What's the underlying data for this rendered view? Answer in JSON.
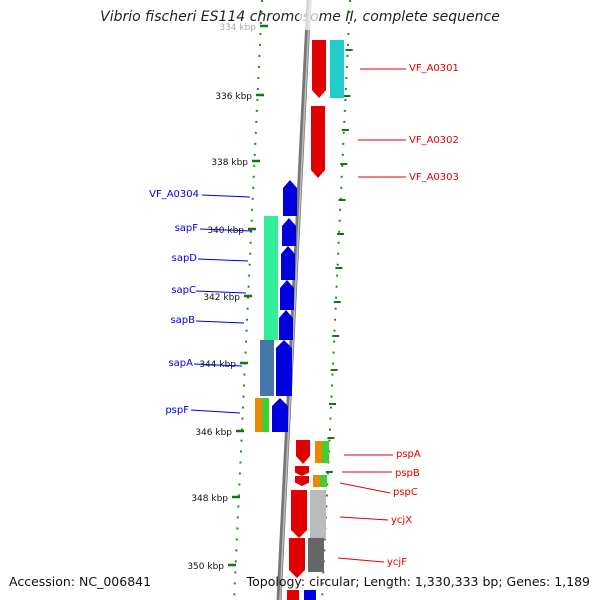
{
  "title": "Vibrio fischeri ES114 chromosome II, complete sequence",
  "accession": "Accession: NC_006841",
  "topology": "Topology: circular; Length: 1,330,333 bp; Genes: 1,189",
  "scale": {
    "unit": "kbp",
    "labels": [
      "334 kbp",
      "336 kbp",
      "338 kbp",
      "340 kbp",
      "342 kbp",
      "344 kbp",
      "346 kbp",
      "348 kbp",
      "350 kbp"
    ]
  },
  "forward_strand": {
    "color": "#e00000",
    "genes": [
      "VF_A0301",
      "VF_A0302",
      "VF_A0303",
      "pspA",
      "pspB",
      "pspC",
      "ycjX",
      "ycjF"
    ]
  },
  "reverse_strand": {
    "color": "#0000dd",
    "genes": [
      "VF_A0304",
      "sapF",
      "sapD",
      "sapC",
      "sapB",
      "sapA",
      "pspF"
    ]
  },
  "category_colors": {
    "cyan": "#22cccc",
    "spring_green": "#33ee99",
    "steel_blue": "#4477aa",
    "orange": "#ee8800",
    "green": "#44cc33",
    "silver": "#bbbbbb",
    "dark_gray": "#666666"
  }
}
